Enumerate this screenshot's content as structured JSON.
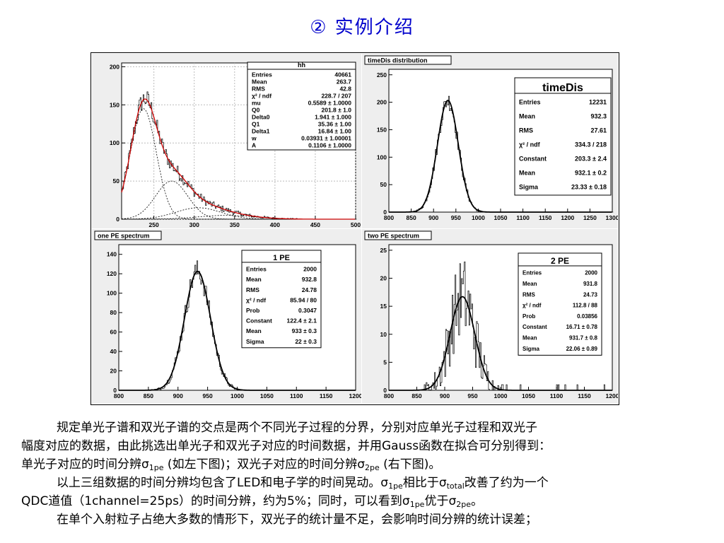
{
  "page": {
    "title": "②  实例介绍"
  },
  "chart_data": [
    {
      "type": "histogram",
      "title": "hh",
      "xlim": [
        210,
        500
      ],
      "ylim": [
        0,
        205
      ],
      "xticks": [
        250,
        300,
        350,
        400,
        450,
        500
      ],
      "yticks": [
        0,
        50,
        100,
        150,
        200
      ],
      "stats": [
        [
          "Entries",
          "40661"
        ],
        [
          "Mean",
          "263.7"
        ],
        [
          "RMS",
          "42.8"
        ],
        [
          "χ² / ndf",
          "228.7 / 207"
        ],
        [
          "mu",
          "0.5589 ± 1.0000"
        ],
        [
          "Q0",
          "201.8 ± 1.0"
        ],
        [
          "Delta0",
          "1.941 ± 1.000"
        ],
        [
          "Q1",
          "35.36 ± 1.00"
        ],
        [
          "Delta1",
          "16.84 ± 1.00"
        ],
        [
          "w",
          "0.03931 ± 1.00001"
        ],
        [
          "A",
          "0.1106 ± 1.0000"
        ]
      ],
      "fit_color": "#cc0000",
      "components": [
        {
          "mean": 237,
          "sigma": 16,
          "amp": 145
        },
        {
          "mean": 272,
          "sigma": 20,
          "amp": 50
        },
        {
          "mean": 305,
          "sigma": 28,
          "amp": 15
        },
        {
          "mean": 340,
          "sigma": 35,
          "amp": 5
        }
      ]
    },
    {
      "type": "histogram",
      "title": "timeDis distribution",
      "stats_title": "timeDis",
      "xlim": [
        800,
        1300
      ],
      "ylim": [
        0,
        260
      ],
      "xticks": [
        800,
        850,
        900,
        950,
        1000,
        1050,
        1100,
        1150,
        1200,
        1250,
        1300
      ],
      "yticks": [
        0,
        50,
        100,
        150,
        200,
        250
      ],
      "stats": [
        [
          "Entries",
          "12231"
        ],
        [
          "Mean",
          "932.3"
        ],
        [
          "RMS",
          "27.61"
        ],
        [
          "χ² / ndf",
          "334.3 / 218"
        ],
        [
          "Constant",
          "203.3 ± 2.4"
        ],
        [
          "Mean",
          "932.1 ± 0.2"
        ],
        [
          "Sigma",
          "23.33 ± 0.18"
        ]
      ],
      "fit": {
        "constant": 203.3,
        "mean": 932.1,
        "sigma": 23.33
      }
    },
    {
      "type": "histogram",
      "title": "one PE spectrum",
      "stats_title": "1 PE",
      "xlim": [
        800,
        1200
      ],
      "ylim": [
        0,
        150
      ],
      "xticks": [
        800,
        850,
        900,
        950,
        1000,
        1050,
        1100,
        1150,
        1200
      ],
      "yticks": [
        0,
        20,
        40,
        60,
        80,
        100,
        120,
        140
      ],
      "stats": [
        [
          "Entries",
          "2000"
        ],
        [
          "Mean",
          "932.8"
        ],
        [
          "RMS",
          "24.78"
        ],
        [
          "χ² / ndf",
          "85.94 / 80"
        ],
        [
          "Prob",
          "0.3047"
        ],
        [
          "Constant",
          "122.4 ± 2.1"
        ],
        [
          "Mean",
          "933 ± 0.3"
        ],
        [
          "Sigma",
          "22 ± 0.3"
        ]
      ],
      "fit": {
        "constant": 122.4,
        "mean": 933,
        "sigma": 22
      }
    },
    {
      "type": "histogram",
      "title": "two PE spectrum",
      "stats_title": "2 PE",
      "xlim": [
        800,
        1200
      ],
      "ylim": [
        0,
        26
      ],
      "xticks": [
        800,
        850,
        900,
        950,
        1000,
        1050,
        1100,
        1150,
        1200
      ],
      "yticks": [
        0,
        5,
        10,
        15,
        20,
        25
      ],
      "stats": [
        [
          "Entries",
          "2000"
        ],
        [
          "Mean",
          "931.8"
        ],
        [
          "RMS",
          "24.73"
        ],
        [
          "χ² / ndf",
          "112.8 / 88"
        ],
        [
          "Prob",
          "0.03856"
        ],
        [
          "Constant",
          "16.71 ± 0.78"
        ],
        [
          "Mean",
          "931.7 ± 0.8"
        ],
        [
          "Sigma",
          "22.06 ± 0.89"
        ]
      ],
      "fit": {
        "constant": 16.71,
        "mean": 931.7,
        "sigma": 22.06
      }
    }
  ],
  "text": {
    "p1a": "规定单光子谱和双光子谱的交点是两个不同光子过程的分界，分别对应单光子过程和双光子",
    "p1b": "幅度对应的数据，由此挑选出单光子和双光子对应的时间数据，并用Gauss函数在拟合可分别得到：",
    "p1c_pre": "单光子对应的时间分辨σ",
    "sub_1pe": "1pe",
    "p1c_mid": " (如左下图)；双光子对应的时间分辨σ",
    "sub_2pe": "2pe",
    "p1c_post": " (右下图)。",
    "p2a_pre": "以上三组数据的时间分辨均包含了LED和电子学的时间晃动。σ",
    "p2a_mid": "相比于σ",
    "sub_total": "total",
    "p2a_post": "改善了约为一个",
    "p2b_pre": "QDC道值（1channel=25ps）的时间分辨，约为5%；同时，可以看到σ",
    "p2b_mid": "优于σ",
    "p2b_post": "。",
    "p3": "在单个入射粒子占绝大多数的情形下，双光子的统计量不足，会影响时间分辨的统计误差；"
  }
}
